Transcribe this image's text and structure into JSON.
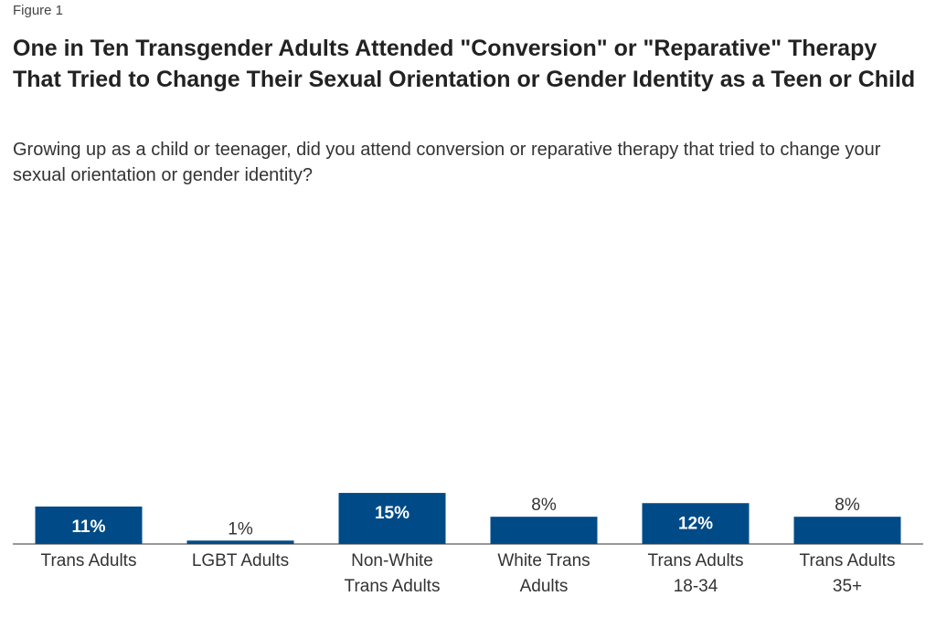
{
  "chart_data": {
    "type": "bar",
    "figure_label": "Figure 1",
    "title": "One in Ten Transgender Adults Attended \"Conversion\" or \"Reparative\" Therapy That Tried to Change Their Sexual Orientation or Gender Identity  as a Teen or Child",
    "subtitle": "Growing up as a child or teenager, did you attend conversion or reparative therapy that tried to change your sexual orientation or gender identity?",
    "categories": [
      "Trans Adults",
      "LGBT Adults",
      "Non-White Trans Adults",
      "White Trans Adults",
      "Trans Adults 18-34",
      "Trans Adults 35+"
    ],
    "values": [
      11,
      1,
      15,
      8,
      12,
      8
    ],
    "value_labels": [
      "11%",
      "1%",
      "15%",
      "8%",
      "12%",
      "8%"
    ],
    "color": "#004b87"
  }
}
